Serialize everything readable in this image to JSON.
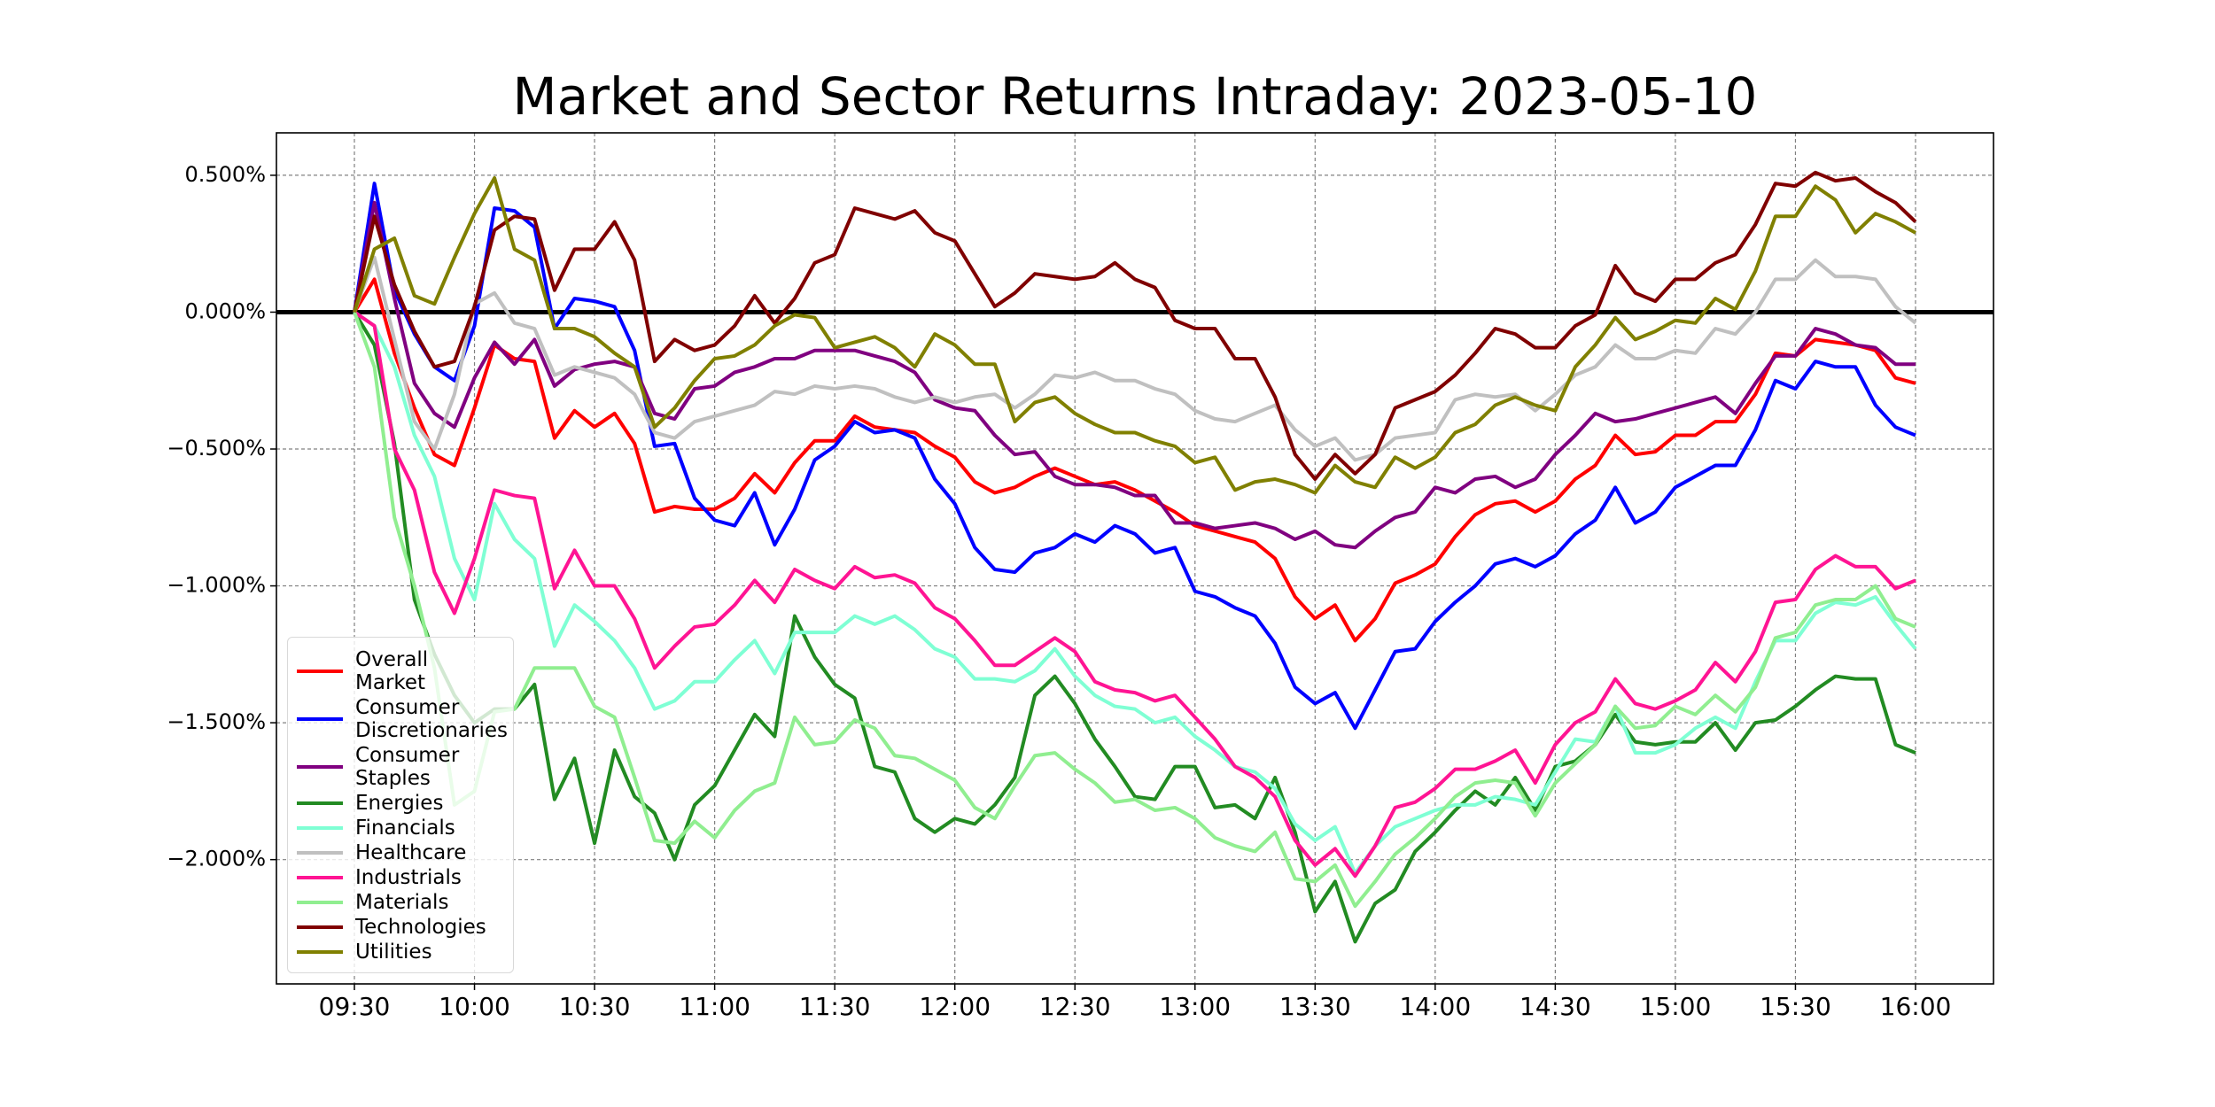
{
  "chart_data": {
    "type": "line",
    "title": "Market and Sector Returns Intraday: 2023-05-10",
    "categories": [
      "09:30",
      null,
      null,
      null,
      null,
      null,
      "10:00",
      null,
      null,
      null,
      null,
      null,
      "10:30",
      null,
      null,
      null,
      null,
      null,
      "11:00",
      null,
      null,
      null,
      null,
      null,
      "11:30",
      null,
      null,
      null,
      null,
      null,
      "12:00",
      null,
      null,
      null,
      null,
      null,
      "12:30",
      null,
      null,
      null,
      null,
      null,
      "13:00",
      null,
      null,
      null,
      null,
      null,
      "13:30",
      null,
      null,
      null,
      null,
      null,
      "14:00",
      null,
      null,
      null,
      null,
      null,
      "14:30",
      null,
      null,
      null,
      null,
      null,
      "15:00",
      null,
      null,
      null,
      null,
      null,
      "15:30",
      null,
      null,
      null,
      null,
      null,
      "16:00"
    ],
    "ylim": [
      -2.454,
      0.655
    ],
    "yticks": [
      {
        "value": 0.5,
        "label": "0.500%"
      },
      {
        "value": 0,
        "label": "0.000%"
      },
      {
        "value": -0.5,
        "label": "−0.500%"
      },
      {
        "value": -1,
        "label": "−1.000%"
      },
      {
        "value": -1.5,
        "label": "−1.500%"
      },
      {
        "value": -2,
        "label": "−2.000%"
      }
    ],
    "grid": true,
    "reference_line": 0,
    "legend": "lower left",
    "series": [
      {
        "name": "Overall\nMarket",
        "color": "#ff0000",
        "values": [
          0,
          0.12,
          -0.15,
          -0.35,
          -0.52,
          -0.56,
          -0.35,
          -0.12,
          -0.17,
          -0.18,
          -0.46,
          -0.36,
          -0.42,
          -0.37,
          -0.48,
          -0.73,
          -0.71,
          -0.72,
          -0.72,
          -0.68,
          -0.59,
          -0.66,
          -0.55,
          -0.47,
          -0.47,
          -0.38,
          -0.42,
          -0.43,
          -0.44,
          -0.49,
          -0.53,
          -0.62,
          -0.66,
          -0.64,
          -0.6,
          -0.57,
          -0.6,
          -0.63,
          -0.62,
          -0.65,
          -0.69,
          -0.73,
          -0.78,
          -0.8,
          -0.82,
          -0.84,
          -0.9,
          -1.04,
          -1.12,
          -1.07,
          -1.2,
          -1.12,
          -0.99,
          -0.96,
          -0.92,
          -0.82,
          -0.74,
          -0.7,
          -0.69,
          -0.73,
          -0.69,
          -0.61,
          -0.56,
          -0.45,
          -0.52,
          -0.51,
          -0.45,
          -0.45,
          -0.4,
          -0.4,
          -0.3,
          -0.15,
          -0.16,
          -0.1,
          -0.11,
          -0.12,
          -0.14,
          -0.24,
          -0.26
        ]
      },
      {
        "name": "Consumer\nDiscretionaries",
        "color": "#0000ff",
        "values": [
          0,
          0.47,
          0.08,
          -0.08,
          -0.2,
          -0.25,
          -0.05,
          0.38,
          0.37,
          0.31,
          -0.06,
          0.05,
          0.04,
          0.02,
          -0.14,
          -0.49,
          -0.48,
          -0.68,
          -0.76,
          -0.78,
          -0.66,
          -0.85,
          -0.72,
          -0.54,
          -0.49,
          -0.4,
          -0.44,
          -0.43,
          -0.46,
          -0.61,
          -0.7,
          -0.86,
          -0.94,
          -0.95,
          -0.88,
          -0.86,
          -0.81,
          -0.84,
          -0.78,
          -0.81,
          -0.88,
          -0.86,
          -1.02,
          -1.04,
          -1.08,
          -1.11,
          -1.21,
          -1.37,
          -1.43,
          -1.39,
          -1.52,
          -1.38,
          -1.24,
          -1.23,
          -1.13,
          -1.06,
          -1.0,
          -0.92,
          -0.9,
          -0.93,
          -0.89,
          -0.81,
          -0.76,
          -0.64,
          -0.77,
          -0.73,
          -0.64,
          -0.6,
          -0.56,
          -0.56,
          -0.43,
          -0.25,
          -0.28,
          -0.18,
          -0.2,
          -0.2,
          -0.34,
          -0.42,
          -0.45
        ]
      },
      {
        "name": "Consumer\nStaples",
        "color": "#800080",
        "values": [
          0,
          0.4,
          0.05,
          -0.26,
          -0.37,
          -0.42,
          -0.24,
          -0.11,
          -0.19,
          -0.1,
          -0.27,
          -0.21,
          -0.19,
          -0.18,
          -0.2,
          -0.37,
          -0.39,
          -0.28,
          -0.27,
          -0.22,
          -0.2,
          -0.17,
          -0.17,
          -0.14,
          -0.14,
          -0.14,
          -0.16,
          -0.18,
          -0.22,
          -0.32,
          -0.35,
          -0.36,
          -0.45,
          -0.52,
          -0.51,
          -0.6,
          -0.63,
          -0.63,
          -0.64,
          -0.67,
          -0.67,
          -0.77,
          -0.77,
          -0.79,
          -0.78,
          -0.77,
          -0.79,
          -0.83,
          -0.8,
          -0.85,
          -0.86,
          -0.8,
          -0.75,
          -0.73,
          -0.64,
          -0.66,
          -0.61,
          -0.6,
          -0.64,
          -0.61,
          -0.52,
          -0.45,
          -0.37,
          -0.4,
          -0.39,
          -0.37,
          -0.35,
          -0.33,
          -0.31,
          -0.37,
          -0.26,
          -0.16,
          -0.16,
          -0.06,
          -0.08,
          -0.12,
          -0.13,
          -0.19,
          -0.19
        ]
      },
      {
        "name": "Energies",
        "color": "#228b22",
        "values": [
          0,
          -0.12,
          -0.48,
          -1.05,
          -1.25,
          -1.4,
          -1.5,
          -1.45,
          -1.45,
          -1.36,
          -1.78,
          -1.63,
          -1.94,
          -1.6,
          -1.77,
          -1.83,
          -2.0,
          -1.8,
          -1.73,
          -1.6,
          -1.47,
          -1.55,
          -1.11,
          -1.26,
          -1.36,
          -1.41,
          -1.66,
          -1.68,
          -1.85,
          -1.9,
          -1.85,
          -1.87,
          -1.8,
          -1.7,
          -1.4,
          -1.33,
          -1.43,
          -1.56,
          -1.66,
          -1.77,
          -1.78,
          -1.66,
          -1.66,
          -1.81,
          -1.8,
          -1.85,
          -1.7,
          -1.9,
          -2.19,
          -2.08,
          -2.3,
          -2.16,
          -2.11,
          -1.97,
          -1.9,
          -1.82,
          -1.75,
          -1.8,
          -1.7,
          -1.82,
          -1.66,
          -1.64,
          -1.58,
          -1.47,
          -1.57,
          -1.58,
          -1.57,
          -1.57,
          -1.5,
          -1.6,
          -1.5,
          -1.49,
          -1.44,
          -1.38,
          -1.33,
          -1.34,
          -1.34,
          -1.58,
          -1.61
        ]
      },
      {
        "name": "Financials",
        "color": "#7fffd4",
        "values": [
          0,
          -0.05,
          -0.2,
          -0.45,
          -0.6,
          -0.9,
          -1.05,
          -0.7,
          -0.83,
          -0.9,
          -1.22,
          -1.07,
          -1.13,
          -1.2,
          -1.3,
          -1.45,
          -1.42,
          -1.35,
          -1.35,
          -1.27,
          -1.2,
          -1.32,
          -1.17,
          -1.17,
          -1.17,
          -1.11,
          -1.14,
          -1.11,
          -1.16,
          -1.23,
          -1.26,
          -1.34,
          -1.34,
          -1.35,
          -1.31,
          -1.23,
          -1.33,
          -1.4,
          -1.44,
          -1.45,
          -1.5,
          -1.48,
          -1.55,
          -1.6,
          -1.66,
          -1.68,
          -1.74,
          -1.87,
          -1.93,
          -1.88,
          -2.05,
          -1.95,
          -1.88,
          -1.85,
          -1.82,
          -1.8,
          -1.8,
          -1.77,
          -1.78,
          -1.8,
          -1.68,
          -1.56,
          -1.57,
          -1.44,
          -1.61,
          -1.61,
          -1.58,
          -1.52,
          -1.48,
          -1.52,
          -1.35,
          -1.2,
          -1.2,
          -1.1,
          -1.06,
          -1.07,
          -1.04,
          -1.14,
          -1.23
        ]
      },
      {
        "name": "Healthcare",
        "color": "#c0c0c0",
        "values": [
          0,
          0.2,
          -0.1,
          -0.4,
          -0.5,
          -0.3,
          0.03,
          0.07,
          -0.04,
          -0.06,
          -0.23,
          -0.2,
          -0.22,
          -0.24,
          -0.3,
          -0.44,
          -0.46,
          -0.4,
          -0.38,
          -0.36,
          -0.34,
          -0.29,
          -0.3,
          -0.27,
          -0.28,
          -0.27,
          -0.28,
          -0.31,
          -0.33,
          -0.31,
          -0.33,
          -0.31,
          -0.3,
          -0.35,
          -0.3,
          -0.23,
          -0.24,
          -0.22,
          -0.25,
          -0.25,
          -0.28,
          -0.3,
          -0.36,
          -0.39,
          -0.4,
          -0.37,
          -0.34,
          -0.43,
          -0.49,
          -0.46,
          -0.54,
          -0.52,
          -0.46,
          -0.45,
          -0.44,
          -0.32,
          -0.3,
          -0.31,
          -0.3,
          -0.36,
          -0.3,
          -0.23,
          -0.2,
          -0.12,
          -0.17,
          -0.17,
          -0.14,
          -0.15,
          -0.06,
          -0.08,
          0.0,
          0.12,
          0.12,
          0.19,
          0.13,
          0.13,
          0.12,
          0.02,
          -0.04
        ]
      },
      {
        "name": "Industrials",
        "color": "#ff1493",
        "values": [
          0,
          -0.05,
          -0.5,
          -0.65,
          -0.95,
          -1.1,
          -0.9,
          -0.65,
          -0.67,
          -0.68,
          -1.01,
          -0.87,
          -1.0,
          -1.0,
          -1.12,
          -1.3,
          -1.22,
          -1.15,
          -1.14,
          -1.07,
          -0.98,
          -1.06,
          -0.94,
          -0.98,
          -1.01,
          -0.93,
          -0.97,
          -0.96,
          -0.99,
          -1.08,
          -1.12,
          -1.2,
          -1.29,
          -1.29,
          -1.24,
          -1.19,
          -1.24,
          -1.35,
          -1.38,
          -1.39,
          -1.42,
          -1.4,
          -1.48,
          -1.56,
          -1.66,
          -1.7,
          -1.77,
          -1.93,
          -2.02,
          -1.96,
          -2.06,
          -1.95,
          -1.81,
          -1.79,
          -1.74,
          -1.67,
          -1.67,
          -1.64,
          -1.6,
          -1.72,
          -1.58,
          -1.5,
          -1.46,
          -1.34,
          -1.43,
          -1.45,
          -1.42,
          -1.38,
          -1.28,
          -1.35,
          -1.24,
          -1.06,
          -1.05,
          -0.94,
          -0.89,
          -0.93,
          -0.93,
          -1.01,
          -0.98
        ]
      },
      {
        "name": "Materials",
        "color": "#90ee90",
        "values": [
          0,
          -0.2,
          -0.75,
          -1.0,
          -1.3,
          -1.8,
          -1.75,
          -1.46,
          -1.45,
          -1.3,
          -1.3,
          -1.3,
          -1.44,
          -1.48,
          -1.7,
          -1.93,
          -1.94,
          -1.86,
          -1.92,
          -1.82,
          -1.75,
          -1.72,
          -1.48,
          -1.58,
          -1.57,
          -1.49,
          -1.52,
          -1.62,
          -1.63,
          -1.67,
          -1.71,
          -1.81,
          -1.85,
          -1.73,
          -1.62,
          -1.61,
          -1.67,
          -1.72,
          -1.79,
          -1.78,
          -1.82,
          -1.81,
          -1.85,
          -1.92,
          -1.95,
          -1.97,
          -1.9,
          -2.07,
          -2.08,
          -2.02,
          -2.17,
          -2.08,
          -1.98,
          -1.92,
          -1.85,
          -1.77,
          -1.72,
          -1.71,
          -1.72,
          -1.84,
          -1.72,
          -1.65,
          -1.58,
          -1.44,
          -1.52,
          -1.51,
          -1.44,
          -1.47,
          -1.4,
          -1.46,
          -1.37,
          -1.19,
          -1.17,
          -1.07,
          -1.05,
          -1.05,
          -1.0,
          -1.12,
          -1.15
        ]
      },
      {
        "name": "Technologies",
        "color": "#800000",
        "values": [
          0,
          0.35,
          0.1,
          -0.07,
          -0.2,
          -0.18,
          0.02,
          0.3,
          0.35,
          0.34,
          0.08,
          0.23,
          0.23,
          0.33,
          0.19,
          -0.18,
          -0.1,
          -0.14,
          -0.12,
          -0.05,
          0.06,
          -0.04,
          0.05,
          0.18,
          0.21,
          0.38,
          0.36,
          0.34,
          0.37,
          0.29,
          0.26,
          0.14,
          0.02,
          0.07,
          0.14,
          0.13,
          0.12,
          0.13,
          0.18,
          0.12,
          0.09,
          -0.03,
          -0.06,
          -0.06,
          -0.17,
          -0.17,
          -0.31,
          -0.52,
          -0.61,
          -0.52,
          -0.59,
          -0.52,
          -0.35,
          -0.32,
          -0.29,
          -0.23,
          -0.15,
          -0.06,
          -0.08,
          -0.13,
          -0.13,
          -0.05,
          -0.01,
          0.17,
          0.07,
          0.04,
          0.12,
          0.12,
          0.18,
          0.21,
          0.32,
          0.47,
          0.46,
          0.51,
          0.48,
          0.49,
          0.44,
          0.4,
          0.33
        ]
      },
      {
        "name": "Utilities",
        "color": "#808000",
        "values": [
          0,
          0.23,
          0.27,
          0.06,
          0.03,
          0.2,
          0.36,
          0.49,
          0.23,
          0.19,
          -0.06,
          -0.06,
          -0.09,
          -0.15,
          -0.2,
          -0.42,
          -0.35,
          -0.25,
          -0.17,
          -0.16,
          -0.12,
          -0.05,
          -0.01,
          -0.02,
          -0.13,
          -0.11,
          -0.09,
          -0.13,
          -0.2,
          -0.08,
          -0.12,
          -0.19,
          -0.19,
          -0.4,
          -0.33,
          -0.31,
          -0.37,
          -0.41,
          -0.44,
          -0.44,
          -0.47,
          -0.49,
          -0.55,
          -0.53,
          -0.65,
          -0.62,
          -0.61,
          -0.63,
          -0.66,
          -0.56,
          -0.62,
          -0.64,
          -0.53,
          -0.57,
          -0.53,
          -0.44,
          -0.41,
          -0.34,
          -0.31,
          -0.34,
          -0.36,
          -0.2,
          -0.12,
          -0.02,
          -0.1,
          -0.07,
          -0.03,
          -0.04,
          0.05,
          0.01,
          0.15,
          0.35,
          0.35,
          0.46,
          0.41,
          0.29,
          0.36,
          0.33,
          0.29
        ]
      }
    ]
  }
}
